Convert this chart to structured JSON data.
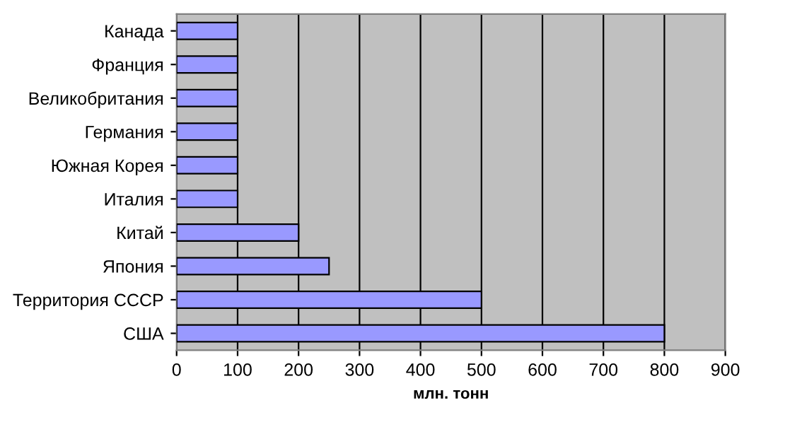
{
  "chart_data": {
    "type": "bar",
    "orientation": "horizontal",
    "xlabel": "млн. тонн",
    "categories": [
      "Канада",
      "Франция",
      "Великобритания",
      "Германия",
      "Южная Корея",
      "Италия",
      "Китай",
      "Япония",
      "Территория СССР",
      "США"
    ],
    "values": [
      100,
      100,
      100,
      100,
      100,
      100,
      200,
      250,
      500,
      800
    ],
    "color": "#9999ff",
    "xlim": [
      0,
      900
    ],
    "xticks": [
      0,
      100,
      200,
      300,
      400,
      500,
      600,
      700,
      800,
      900
    ],
    "grid": "x",
    "legend": false
  }
}
